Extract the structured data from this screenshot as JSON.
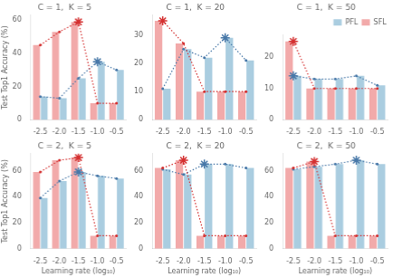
{
  "chart_data": [
    {
      "type": "bar",
      "title": "C = 1,  K = 5",
      "ylabel": "Test Top1 Accuracy (%)",
      "categories": [
        "-2.5",
        "-2.0",
        "-1.5",
        "-1.0",
        "-0.5"
      ],
      "series": [
        {
          "name": "SFL",
          "type": "bar",
          "color": "#f2aaaa",
          "values": [
            45,
            53,
            59,
            10,
            10
          ]
        },
        {
          "name": "PFL",
          "type": "bar",
          "color": "#aacde0",
          "values": [
            14,
            13,
            25,
            35,
            30
          ]
        },
        {
          "type": "line",
          "color": "#d43030",
          "line_style": "dotted",
          "marker": "circle",
          "values": [
            45,
            53,
            59,
            10,
            10
          ]
        },
        {
          "type": "line",
          "color": "#4878a8",
          "line_style": "dotted",
          "marker": "circle",
          "values": [
            14,
            13,
            25,
            35,
            30
          ]
        },
        {
          "type": "scatter",
          "color": "#d43030",
          "marker": "star",
          "values": [
            null,
            null,
            59,
            null,
            null
          ]
        },
        {
          "type": "scatter",
          "color": "#4878a8",
          "marker": "star",
          "values": [
            null,
            null,
            null,
            35,
            null
          ]
        }
      ],
      "ylim": [
        0,
        63
      ],
      "yticks": [
        0,
        20,
        40,
        60
      ],
      "grid": false
    },
    {
      "type": "bar",
      "title": "C = 1,  K = 20",
      "categories": [
        "-2.5",
        "-2.0",
        "-1.5",
        "-1.0",
        "-0.5"
      ],
      "series": [
        {
          "name": "SFL",
          "type": "bar",
          "color": "#f2aaaa",
          "values": [
            35,
            27,
            10,
            10,
            10
          ]
        },
        {
          "name": "PFL",
          "type": "bar",
          "color": "#aacde0",
          "values": [
            11,
            25,
            22,
            29,
            21
          ]
        },
        {
          "type": "line",
          "color": "#d43030",
          "line_style": "dotted",
          "marker": "circle",
          "values": [
            35,
            27,
            10,
            10,
            10
          ]
        },
        {
          "type": "line",
          "color": "#4878a8",
          "line_style": "dotted",
          "marker": "circle",
          "values": [
            11,
            25,
            22,
            29,
            21
          ]
        },
        {
          "type": "scatter",
          "color": "#d43030",
          "marker": "star",
          "values": [
            35,
            null,
            null,
            null,
            null
          ]
        },
        {
          "type": "scatter",
          "color": "#4878a8",
          "marker": "star",
          "values": [
            null,
            null,
            null,
            29,
            null
          ]
        }
      ],
      "ylim": [
        0,
        37
      ],
      "yticks": [
        0,
        10,
        20,
        30
      ],
      "grid": false
    },
    {
      "type": "bar",
      "title": "C = 1,  K = 50",
      "categories": [
        "-2.5",
        "-2.0",
        "-1.5",
        "-1.0",
        "-0.5"
      ],
      "series": [
        {
          "name": "SFL",
          "type": "bar",
          "color": "#f2aaaa",
          "values": [
            25,
            10,
            10,
            10,
            10
          ]
        },
        {
          "name": "PFL",
          "type": "bar",
          "color": "#aacde0",
          "values": [
            14,
            13,
            13,
            14,
            11
          ]
        },
        {
          "type": "line",
          "color": "#d43030",
          "line_style": "dotted",
          "marker": "circle",
          "values": [
            25,
            10,
            10,
            10,
            10
          ]
        },
        {
          "type": "line",
          "color": "#4878a8",
          "line_style": "dotted",
          "marker": "circle",
          "values": [
            14,
            13,
            13,
            14,
            11
          ]
        },
        {
          "type": "scatter",
          "color": "#d43030",
          "marker": "star",
          "values": [
            25,
            null,
            null,
            null,
            null
          ]
        },
        {
          "type": "scatter",
          "color": "#4878a8",
          "marker": "star",
          "values": [
            14,
            null,
            null,
            null,
            null
          ]
        }
      ],
      "ylim": [
        0,
        27
      ],
      "yticks": [
        0,
        10,
        20
      ],
      "grid": false,
      "legend": "upper right"
    },
    {
      "type": "bar",
      "title": "C = 2,  K = 5",
      "ylabel": "Test Top1 Accuracy (%)",
      "xlabel": "Learning rate (log₁₀)",
      "categories": [
        "-2.5",
        "-2.0",
        "-1.5",
        "-1.0",
        "-0.5"
      ],
      "series": [
        {
          "name": "SFL",
          "type": "bar",
          "color": "#f2aaaa",
          "values": [
            59,
            68,
            70,
            10,
            10
          ]
        },
        {
          "name": "PFL",
          "type": "bar",
          "color": "#aacde0",
          "values": [
            39,
            52,
            59,
            56,
            54
          ]
        },
        {
          "type": "line",
          "color": "#d43030",
          "line_style": "dotted",
          "marker": "circle",
          "values": [
            59,
            68,
            70,
            10,
            10
          ]
        },
        {
          "type": "line",
          "color": "#4878a8",
          "line_style": "dotted",
          "marker": "circle",
          "values": [
            39,
            52,
            59,
            56,
            54
          ]
        },
        {
          "type": "scatter",
          "color": "#d43030",
          "marker": "star",
          "values": [
            null,
            null,
            70,
            null,
            null
          ]
        },
        {
          "type": "scatter",
          "color": "#4878a8",
          "marker": "star",
          "values": [
            null,
            null,
            59,
            null,
            null
          ]
        }
      ],
      "ylim": [
        0,
        73
      ],
      "yticks": [
        0,
        20,
        40,
        60
      ],
      "grid": false
    },
    {
      "type": "bar",
      "title": "C = 2,  K = 20",
      "xlabel": "Learning rate (log₁₀)",
      "categories": [
        "-2.5",
        "-2.0",
        "-1.5",
        "-1.0",
        "-0.5"
      ],
      "series": [
        {
          "name": "SFL",
          "type": "bar",
          "color": "#f2aaaa",
          "values": [
            62,
            68,
            10,
            10,
            10
          ]
        },
        {
          "name": "PFL",
          "type": "bar",
          "color": "#aacde0",
          "values": [
            61,
            57,
            65,
            65,
            62
          ]
        },
        {
          "type": "line",
          "color": "#d43030",
          "line_style": "dotted",
          "marker": "circle",
          "values": [
            62,
            68,
            10,
            10,
            10
          ]
        },
        {
          "type": "line",
          "color": "#4878a8",
          "line_style": "dotted",
          "marker": "circle",
          "values": [
            61,
            57,
            65,
            65,
            62
          ]
        },
        {
          "type": "scatter",
          "color": "#d43030",
          "marker": "star",
          "values": [
            null,
            68,
            null,
            null,
            null
          ]
        },
        {
          "type": "scatter",
          "color": "#4878a8",
          "marker": "star",
          "values": [
            null,
            null,
            65,
            null,
            null
          ]
        }
      ],
      "ylim": [
        0,
        73
      ],
      "yticks": [
        0,
        20,
        40,
        60
      ],
      "grid": false
    },
    {
      "type": "bar",
      "title": "C = 2,  K = 50",
      "xlabel": "Learning rate (log₁₀)",
      "categories": [
        "-2.5",
        "-2.0",
        "-1.5",
        "-1.0",
        "-0.5"
      ],
      "series": [
        {
          "name": "SFL",
          "type": "bar",
          "color": "#f2aaaa",
          "values": [
            62,
            67,
            10,
            10,
            10
          ]
        },
        {
          "name": "PFL",
          "type": "bar",
          "color": "#aacde0",
          "values": [
            61,
            63,
            65,
            68,
            65
          ]
        },
        {
          "type": "line",
          "color": "#d43030",
          "line_style": "dotted",
          "marker": "circle",
          "values": [
            62,
            67,
            10,
            10,
            10
          ]
        },
        {
          "type": "line",
          "color": "#4878a8",
          "line_style": "dotted",
          "marker": "circle",
          "values": [
            61,
            63,
            65,
            68,
            65
          ]
        },
        {
          "type": "scatter",
          "color": "#d43030",
          "marker": "star",
          "values": [
            null,
            67,
            null,
            null,
            null
          ]
        },
        {
          "type": "scatter",
          "color": "#4878a8",
          "marker": "star",
          "values": [
            null,
            null,
            null,
            68,
            null
          ]
        }
      ],
      "ylim": [
        0,
        73
      ],
      "yticks": [
        0,
        20,
        40,
        60
      ],
      "grid": false
    }
  ]
}
